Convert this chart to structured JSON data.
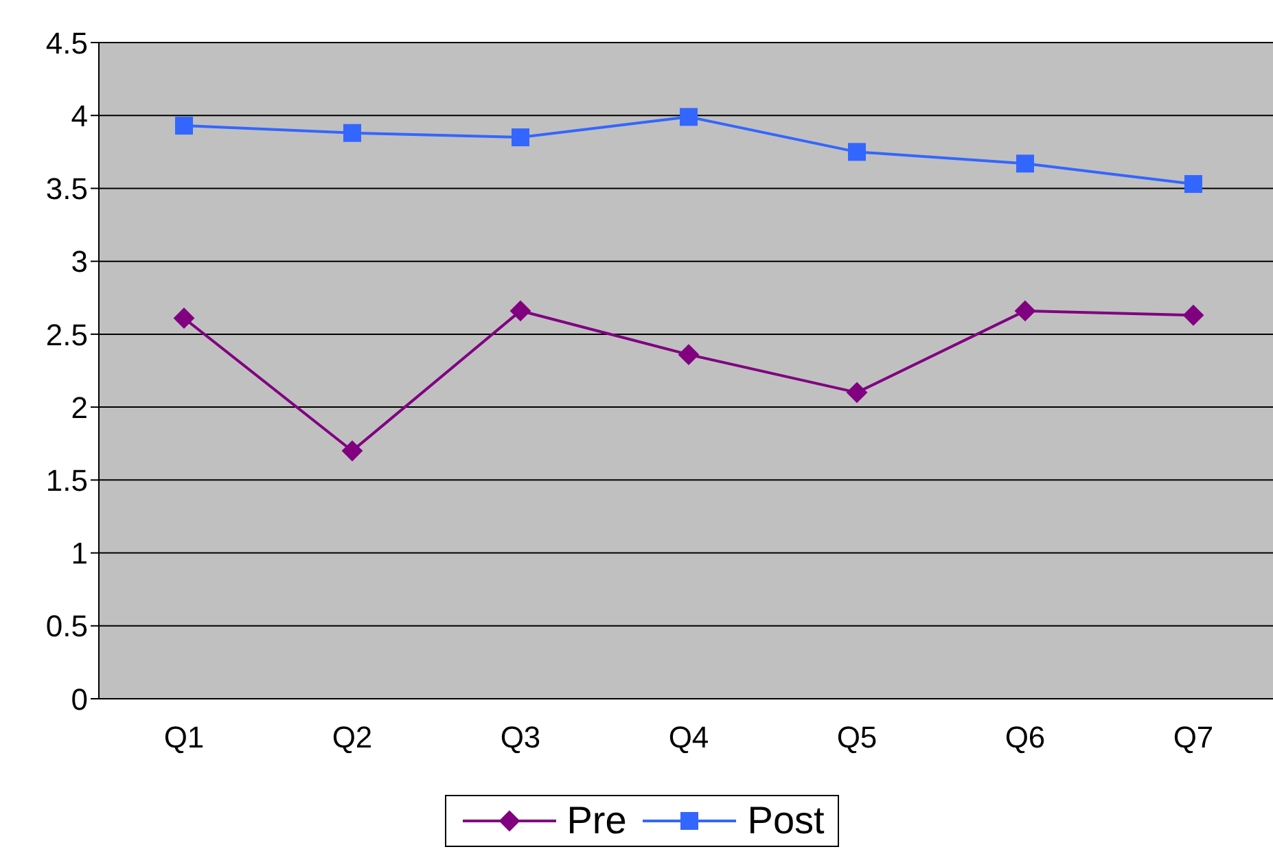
{
  "chart_data": {
    "type": "line",
    "categories": [
      "Q1",
      "Q2",
      "Q3",
      "Q4",
      "Q5",
      "Q6",
      "Q7"
    ],
    "series": [
      {
        "name": "Pre",
        "color": "#800080",
        "marker": "diamond",
        "values": [
          2.61,
          1.7,
          2.66,
          2.36,
          2.1,
          2.66,
          2.63
        ]
      },
      {
        "name": "Post",
        "color": "#3366ff",
        "marker": "square",
        "values": [
          3.93,
          3.88,
          3.85,
          3.99,
          3.75,
          3.67,
          3.53
        ]
      }
    ],
    "ylim": [
      0,
      4.5
    ],
    "yticks": [
      0,
      0.5,
      1,
      1.5,
      2,
      2.5,
      3,
      3.5,
      4,
      4.5
    ],
    "grid": "y",
    "legend": "bottom",
    "line_style": "solid"
  }
}
